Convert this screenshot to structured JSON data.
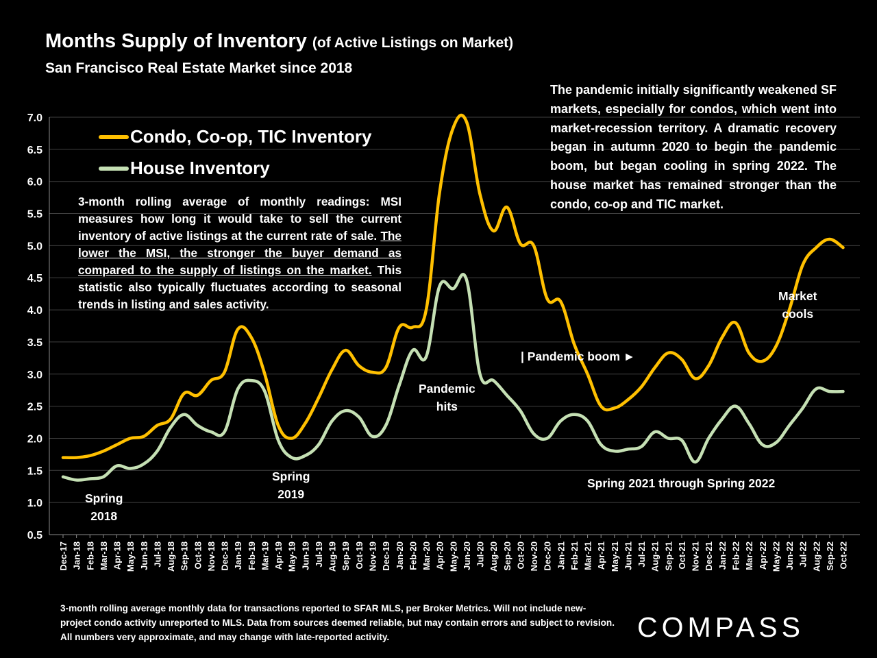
{
  "title": {
    "main": "Months Supply of Inventory",
    "paren": "(of Active Listings on Market)",
    "subtitle": "San Francisco Real Estate Market since 2018"
  },
  "note_left": {
    "part1": "3-month rolling average of monthly readings: MSI measures how long it would take to sell the current inventory of active listings at the current rate of sale. ",
    "underlined": "The lower the MSI, the stronger the buyer demand as compared to the supply of listings on the market.",
    "part2": " This statistic also typically fluctuates according to seasonal trends in listing and sales activity."
  },
  "note_right": "The pandemic initially significantly weakened SF markets, especially for condos, which went into market-recession territory. A dramatic recovery began in autumn 2020 to begin the pandemic boom, but began cooling in spring 2022. The house market has remained stronger than the condo, co-op and TIC market.",
  "annotations": {
    "spring2018_a": "Spring",
    "spring2018_b": "2018",
    "spring2019_a": "Spring",
    "spring2019_b": "2019",
    "pandemic_a": "Pandemic",
    "pandemic_b": "hits",
    "pandemic_boom": "| Pandemic boom ►",
    "spring2021": "Spring 2021 through Spring 2022",
    "market_a": "Market",
    "market_b": "cools"
  },
  "footer": "3-month rolling average monthly data for transactions reported to SFAR MLS, per Broker Metrics. Will not include new-project condo activity unreported to MLS. Data from sources deemed reliable, but may contain errors and subject to revision. All numbers very approximate, and may change with late-reported activity.",
  "logo": "COMPASS",
  "colors": {
    "background": "#000000",
    "condo": "#FFC000",
    "house": "#C5E0B4",
    "grid": "#404040",
    "text": "#FFFFFF"
  },
  "chart_data": {
    "type": "line",
    "title": "Months Supply of Inventory (of Active Listings on Market)",
    "subtitle": "San Francisco Real Estate Market since 2018",
    "ylim": [
      0.5,
      7.0
    ],
    "yticks": [
      "0.5",
      "1.0",
      "1.5",
      "2.0",
      "2.5",
      "3.0",
      "3.5",
      "4.0",
      "4.5",
      "5.0",
      "5.5",
      "6.0",
      "6.5",
      "7.0"
    ],
    "grid": true,
    "legend_position": "top-left",
    "categories": [
      "Dec-17",
      "Jan-18",
      "Feb-18",
      "Mar-18",
      "Apr-18",
      "May-18",
      "Jun-18",
      "Jul-18",
      "Aug-18",
      "Sep-18",
      "Oct-18",
      "Nov-18",
      "Dec-18",
      "Jan-19",
      "Feb-19",
      "Mar-19",
      "Apr-19",
      "May-19",
      "Jun-19",
      "Jul-19",
      "Aug-19",
      "Sep-19",
      "Oct-19",
      "Nov-19",
      "Dec-19",
      "Jan-20",
      "Feb-20",
      "Mar-20",
      "Apr-20",
      "May-20",
      "Jun-20",
      "Jul-20",
      "Aug-20",
      "Sep-20",
      "Oct-20",
      "Nov-20",
      "Dec-20",
      "Jan-21",
      "Feb-21",
      "Mar-21",
      "Apr-21",
      "May-21",
      "Jun-21",
      "Jul-21",
      "Aug-21",
      "Sep-21",
      "Oct-21",
      "Nov-21",
      "Dec-21",
      "Jan-22",
      "Feb-22",
      "Mar-22",
      "Apr-22",
      "May-22",
      "Jun-22",
      "Jul-22",
      "Aug-22",
      "Sep-22",
      "Oct-22"
    ],
    "series": [
      {
        "name": "Condo, Co-op, TIC Inventory",
        "color": "#FFC000",
        "values": [
          1.7,
          1.7,
          1.73,
          1.8,
          1.9,
          2.0,
          2.03,
          2.2,
          2.3,
          2.7,
          2.67,
          2.9,
          3.03,
          3.7,
          3.57,
          3.0,
          2.2,
          2.0,
          2.23,
          2.63,
          3.07,
          3.37,
          3.13,
          3.03,
          3.1,
          3.73,
          3.73,
          4.0,
          5.83,
          6.83,
          6.93,
          5.8,
          5.23,
          5.6,
          5.03,
          5.0,
          4.17,
          4.13,
          3.47,
          3.0,
          2.5,
          2.47,
          2.6,
          2.8,
          3.1,
          3.33,
          3.23,
          2.93,
          3.13,
          3.57,
          3.8,
          3.33,
          3.2,
          3.43,
          4.0,
          4.7,
          4.97,
          5.1,
          4.97
        ]
      },
      {
        "name": "House Inventory",
        "color": "#C5E0B4",
        "values": [
          1.4,
          1.35,
          1.37,
          1.4,
          1.57,
          1.53,
          1.6,
          1.8,
          2.17,
          2.37,
          2.2,
          2.1,
          2.1,
          2.77,
          2.9,
          2.73,
          1.97,
          1.7,
          1.73,
          1.9,
          2.27,
          2.43,
          2.33,
          2.03,
          2.2,
          2.83,
          3.37,
          3.27,
          4.37,
          4.33,
          4.47,
          3.0,
          2.9,
          2.67,
          2.43,
          2.07,
          2.0,
          2.27,
          2.37,
          2.27,
          1.9,
          1.8,
          1.83,
          1.87,
          2.1,
          2.0,
          1.97,
          1.63,
          2.0,
          2.3,
          2.5,
          2.23,
          1.9,
          1.93,
          2.2,
          2.47,
          2.77,
          2.73,
          2.73
        ]
      }
    ]
  }
}
